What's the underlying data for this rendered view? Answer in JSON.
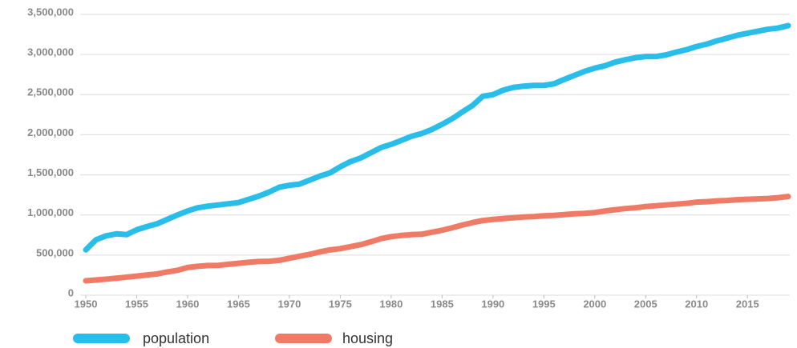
{
  "chart_data": {
    "type": "line",
    "x": [
      1950,
      1951,
      1952,
      1953,
      1954,
      1955,
      1956,
      1957,
      1958,
      1959,
      1960,
      1961,
      1962,
      1963,
      1964,
      1965,
      1966,
      1967,
      1968,
      1969,
      1970,
      1971,
      1972,
      1973,
      1974,
      1975,
      1976,
      1977,
      1978,
      1979,
      1980,
      1981,
      1982,
      1983,
      1984,
      1985,
      1986,
      1987,
      1988,
      1989,
      1990,
      1991,
      1992,
      1993,
      1994,
      1995,
      1996,
      1997,
      1998,
      1999,
      2000,
      2001,
      2002,
      2003,
      2004,
      2005,
      2006,
      2007,
      2008,
      2009,
      2010,
      2011,
      2012,
      2013,
      2014,
      2015,
      2016,
      2017,
      2018,
      2019
    ],
    "series": [
      {
        "name": "population",
        "color": "#29bde9",
        "values": [
          565000,
          690000,
          740000,
          765000,
          755000,
          815000,
          855000,
          890000,
          945000,
          1000000,
          1050000,
          1090000,
          1110000,
          1125000,
          1140000,
          1155000,
          1195000,
          1235000,
          1285000,
          1345000,
          1370000,
          1385000,
          1435000,
          1485000,
          1525000,
          1600000,
          1665000,
          1710000,
          1775000,
          1840000,
          1880000,
          1930000,
          1980000,
          2015000,
          2065000,
          2130000,
          2200000,
          2285000,
          2365000,
          2480000,
          2500000,
          2555000,
          2590000,
          2605000,
          2615000,
          2615000,
          2635000,
          2690000,
          2740000,
          2790000,
          2830000,
          2860000,
          2905000,
          2935000,
          2960000,
          2975000,
          2975000,
          2995000,
          3030000,
          3060000,
          3100000,
          3130000,
          3170000,
          3205000,
          3240000,
          3265000,
          3290000,
          3315000,
          3330000,
          3360000
        ]
      },
      {
        "name": "housing",
        "color": "#ef7b66",
        "values": [
          180000,
          190000,
          200000,
          212000,
          225000,
          238000,
          252000,
          265000,
          290000,
          310000,
          345000,
          360000,
          370000,
          372000,
          385000,
          398000,
          410000,
          420000,
          422000,
          435000,
          460000,
          485000,
          510000,
          540000,
          565000,
          580000,
          605000,
          630000,
          665000,
          705000,
          730000,
          745000,
          755000,
          760000,
          785000,
          810000,
          840000,
          875000,
          905000,
          930000,
          945000,
          955000,
          965000,
          975000,
          980000,
          990000,
          995000,
          1005000,
          1015000,
          1020000,
          1030000,
          1050000,
          1065000,
          1080000,
          1090000,
          1105000,
          1115000,
          1125000,
          1135000,
          1145000,
          1160000,
          1165000,
          1175000,
          1180000,
          1190000,
          1195000,
          1200000,
          1205000,
          1215000,
          1230000
        ]
      }
    ],
    "xlim": [
      1950,
      2019
    ],
    "xticks": [
      1950,
      1955,
      1960,
      1965,
      1970,
      1975,
      1980,
      1985,
      1990,
      1995,
      2000,
      2005,
      2010,
      2015
    ],
    "ylim": [
      0,
      3500000
    ],
    "yticks": [
      0,
      {
        "value": 500000,
        "label": "500,000"
      },
      {
        "value": 1000000,
        "label": "1,000,000"
      },
      {
        "value": 1500000,
        "label": "1,500,000"
      },
      {
        "value": 2000000,
        "label": "2,000,000"
      },
      {
        "value": 2500000,
        "label": "2,500,000"
      },
      {
        "value": 3000000,
        "label": "3,000,000"
      },
      {
        "value": 3500000,
        "label": "3,500,000"
      }
    ],
    "grid": true
  }
}
